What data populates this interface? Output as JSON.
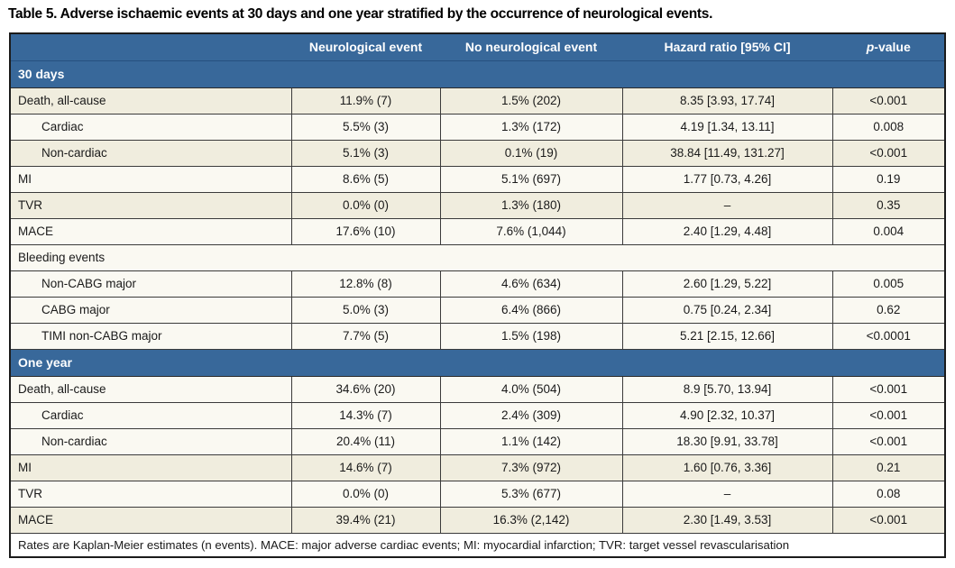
{
  "title": "Table 5. Adverse ischaemic events at 30 days and one year stratified by the occurrence of neurological events.",
  "colors": {
    "header_blue": "#38689A",
    "row_beige": "#F0EDDE",
    "row_white": "#FAF9F2",
    "border_dark": "#1b1b1b",
    "header_text": "#ffffff"
  },
  "table": {
    "columns": [
      {
        "label": ""
      },
      {
        "label": "Neurological event"
      },
      {
        "label": "No neurological event"
      },
      {
        "label": "Hazard ratio [95% CI]"
      },
      {
        "label": "p-value",
        "italic_lead": true
      }
    ],
    "rows": [
      {
        "type": "section",
        "label": "30 days"
      },
      {
        "type": "data",
        "label": "Death, all-cause",
        "indent": false,
        "shade": "beige",
        "values": [
          "11.9% (7)",
          "1.5% (202)",
          "8.35 [3.93, 17.74]",
          "<0.001"
        ]
      },
      {
        "type": "data",
        "label": "Cardiac",
        "indent": true,
        "shade": "white",
        "values": [
          "5.5% (3)",
          "1.3% (172)",
          "4.19 [1.34, 13.11]",
          "0.008"
        ]
      },
      {
        "type": "data",
        "label": "Non-cardiac",
        "indent": true,
        "shade": "beige",
        "values": [
          "5.1% (3)",
          "0.1% (19)",
          "38.84 [11.49, 131.27]",
          "<0.001"
        ]
      },
      {
        "type": "data",
        "label": "MI",
        "indent": false,
        "shade": "white",
        "values": [
          "8.6% (5)",
          "5.1% (697)",
          "1.77 [0.73, 4.26]",
          "0.19"
        ]
      },
      {
        "type": "data",
        "label": "TVR",
        "indent": false,
        "shade": "beige",
        "values": [
          "0.0% (0)",
          "1.3% (180)",
          "–",
          "0.35"
        ]
      },
      {
        "type": "data",
        "label": "MACE",
        "indent": false,
        "shade": "white",
        "values": [
          "17.6% (10)",
          "7.6% (1,044)",
          "2.40 [1.29, 4.48]",
          "0.004"
        ]
      },
      {
        "type": "subheader",
        "label": "Bleeding events"
      },
      {
        "type": "data",
        "label": "Non-CABG major",
        "indent": true,
        "shade": "white",
        "values": [
          "12.8% (8)",
          "4.6% (634)",
          "2.60 [1.29, 5.22]",
          "0.005"
        ]
      },
      {
        "type": "data",
        "label": "CABG major",
        "indent": true,
        "shade": "white",
        "values": [
          "5.0% (3)",
          "6.4% (866)",
          "0.75 [0.24, 2.34]",
          "0.62"
        ]
      },
      {
        "type": "data",
        "label": "TIMI non-CABG major",
        "indent": true,
        "shade": "white",
        "values": [
          "7.7% (5)",
          "1.5% (198)",
          "5.21 [2.15, 12.66]",
          "<0.0001"
        ]
      },
      {
        "type": "section",
        "label": "One year"
      },
      {
        "type": "data",
        "label": "Death, all-cause",
        "indent": false,
        "shade": "white",
        "values": [
          "34.6% (20)",
          "4.0% (504)",
          "8.9 [5.70, 13.94]",
          "<0.001"
        ]
      },
      {
        "type": "data",
        "label": "Cardiac",
        "indent": true,
        "shade": "white",
        "values": [
          "14.3% (7)",
          "2.4% (309)",
          "4.90 [2.32, 10.37]",
          "<0.001"
        ]
      },
      {
        "type": "data",
        "label": "Non-cardiac",
        "indent": true,
        "shade": "white",
        "values": [
          "20.4% (11)",
          "1.1% (142)",
          "18.30 [9.91, 33.78]",
          "<0.001"
        ]
      },
      {
        "type": "data",
        "label": "MI",
        "indent": false,
        "shade": "beige",
        "values": [
          "14.6% (7)",
          "7.3% (972)",
          "1.60 [0.76, 3.36]",
          "0.21"
        ]
      },
      {
        "type": "data",
        "label": "TVR",
        "indent": false,
        "shade": "white",
        "values": [
          "0.0% (0)",
          "5.3% (677)",
          "–",
          "0.08"
        ]
      },
      {
        "type": "data",
        "label": "MACE",
        "indent": false,
        "shade": "beige",
        "values": [
          "39.4% (21)",
          "16.3% (2,142)",
          "2.30 [1.49, 3.53]",
          "<0.001"
        ]
      }
    ],
    "footnote": "Rates are Kaplan-Meier estimates (n events). MACE: major adverse cardiac events; MI: myocardial infarction; TVR: target vessel revascularisation"
  }
}
